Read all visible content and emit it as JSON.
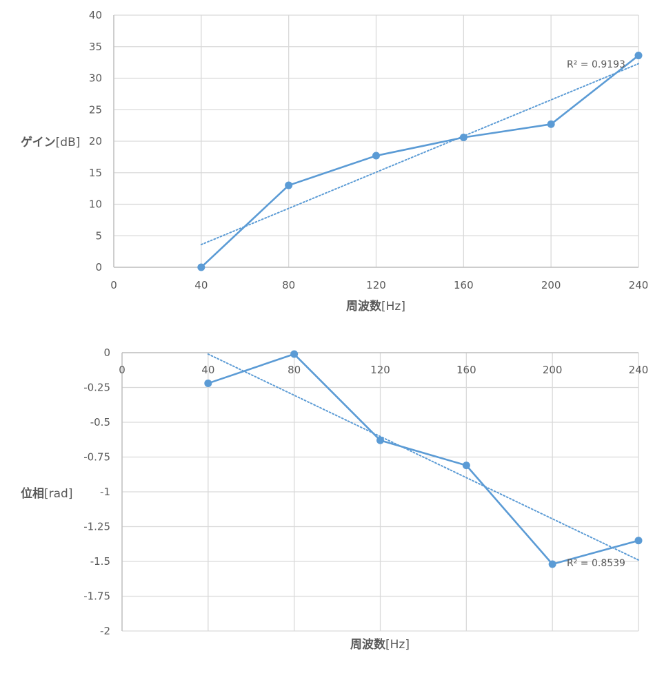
{
  "chart_data": [
    {
      "type": "scatter",
      "name": "gain",
      "x": [
        40,
        80,
        120,
        160,
        200,
        240
      ],
      "y": [
        0,
        13,
        17.7,
        20.6,
        22.7,
        33.6
      ],
      "xlim": [
        0,
        240
      ],
      "ylim": [
        0,
        40
      ],
      "xticks": [
        0,
        40,
        80,
        120,
        160,
        200,
        240
      ],
      "xtick_labels": [
        "0",
        "40",
        "80",
        "120",
        "160",
        "200",
        "240"
      ],
      "yticks": [
        0,
        5,
        10,
        15,
        20,
        25,
        30,
        35,
        40
      ],
      "ytick_labels": [
        "0",
        "5",
        "10",
        "15",
        "20",
        "25",
        "30",
        "35",
        "40"
      ],
      "xlabel": {
        "main": "周波数",
        "unit": "[Hz]"
      },
      "ylabel": {
        "main": "ゲイン",
        "unit": "[dB]"
      },
      "trendline": {
        "type": "linear",
        "x": [
          40,
          240
        ],
        "y": [
          3.6,
          32.3
        ],
        "r2_label": "R² = 0.9193"
      },
      "grid": true,
      "line_color": "#5b9bd5"
    },
    {
      "type": "scatter",
      "name": "phase",
      "x": [
        40,
        80,
        120,
        160,
        200,
        240
      ],
      "y": [
        -0.22,
        -0.01,
        -0.63,
        -0.81,
        -1.52,
        -1.35
      ],
      "xlim": [
        0,
        240
      ],
      "ylim": [
        -2,
        0
      ],
      "xticks": [
        0,
        40,
        80,
        120,
        160,
        200,
        240
      ],
      "xtick_labels": [
        "0",
        "40",
        "80",
        "120",
        "160",
        "200",
        "240"
      ],
      "yticks": [
        0,
        -0.25,
        -0.5,
        -0.75,
        -1,
        -1.25,
        -1.5,
        -1.75,
        -2
      ],
      "ytick_labels": [
        "0",
        "-0.25",
        "-0.5",
        "-0.75",
        "-1",
        "-1.25",
        "-1.5",
        "-1.75",
        "-2"
      ],
      "xlabel": {
        "main": "周波数",
        "unit": "[Hz]"
      },
      "ylabel": {
        "main": "位相",
        "unit": "[rad]"
      },
      "trendline": {
        "type": "linear",
        "x": [
          40,
          240
        ],
        "y": [
          -0.01,
          -1.49
        ],
        "r2_label": "R² = 0.8539"
      },
      "grid": true,
      "line_color": "#5b9bd5"
    }
  ]
}
